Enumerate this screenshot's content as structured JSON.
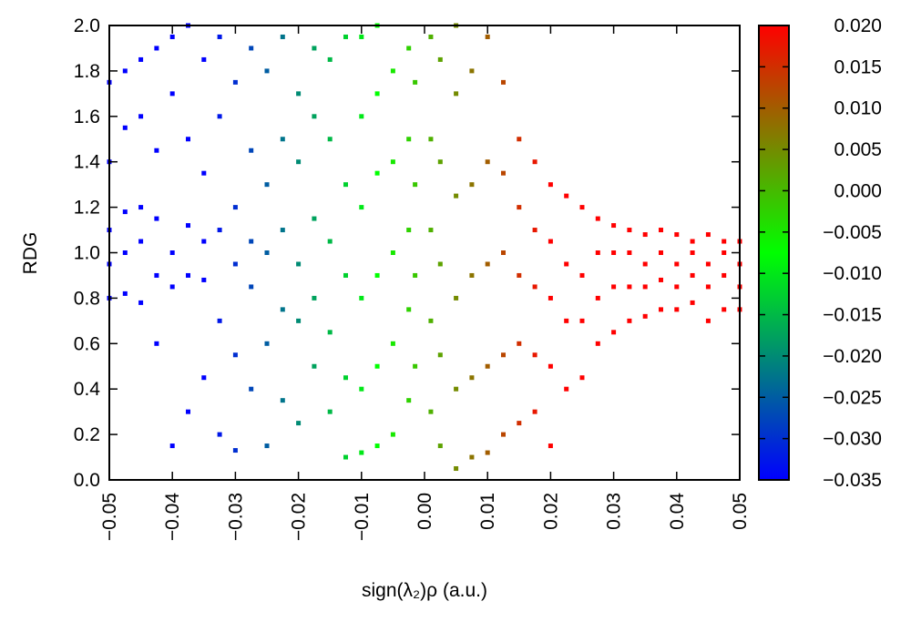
{
  "chart_data": {
    "type": "scatter",
    "x_label": "sign(λ₂)ρ (a.u.)",
    "y_label": "RDG",
    "xlim": [
      -0.05,
      0.05
    ],
    "ylim": [
      0,
      2
    ],
    "xticks": [
      {
        "value": -0.05,
        "label": "−0.05"
      },
      {
        "value": -0.04,
        "label": "−0.04"
      },
      {
        "value": -0.03,
        "label": "−0.03"
      },
      {
        "value": -0.02,
        "label": "−0.02"
      },
      {
        "value": -0.01,
        "label": "−0.01"
      },
      {
        "value": 0,
        "label": "0.00"
      },
      {
        "value": 0.01,
        "label": "0.01"
      },
      {
        "value": 0.02,
        "label": "0.02"
      },
      {
        "value": 0.03,
        "label": "0.03"
      },
      {
        "value": 0.04,
        "label": "0.04"
      },
      {
        "value": 0.05,
        "label": "0.05"
      }
    ],
    "yticks": [
      {
        "value": 0,
        "label": "0.0"
      },
      {
        "value": 0.2,
        "label": "0.2"
      },
      {
        "value": 0.4,
        "label": "0.4"
      },
      {
        "value": 0.6,
        "label": "0.6"
      },
      {
        "value": 0.8,
        "label": "0.8"
      },
      {
        "value": 1,
        "label": "1.0"
      },
      {
        "value": 1.2,
        "label": "1.2"
      },
      {
        "value": 1.4,
        "label": "1.4"
      },
      {
        "value": 1.6,
        "label": "1.6"
      },
      {
        "value": 1.8,
        "label": "1.8"
      },
      {
        "value": 2,
        "label": "2.0"
      }
    ],
    "colorbar": {
      "lim": [
        -0.035,
        0.02
      ],
      "colors": [
        "#0000ff",
        "#00ff00",
        "#ff0000"
      ],
      "ticks": [
        {
          "value": 0.02,
          "label": "0.020"
        },
        {
          "value": 0.015,
          "label": "0.015"
        },
        {
          "value": 0.01,
          "label": "0.010"
        },
        {
          "value": 0.005,
          "label": "0.005"
        },
        {
          "value": 0,
          "label": "0.000"
        },
        {
          "value": -0.005,
          "label": "−0.005"
        },
        {
          "value": -0.01,
          "label": "−0.010"
        },
        {
          "value": -0.015,
          "label": "−0.015"
        },
        {
          "value": -0.02,
          "label": "−0.020"
        },
        {
          "value": -0.025,
          "label": "−0.025"
        },
        {
          "value": -0.03,
          "label": "−0.030"
        },
        {
          "value": -0.035,
          "label": "−0.035"
        }
      ]
    },
    "x": [
      -0.05,
      -0.05,
      -0.05,
      -0.05,
      -0.05,
      -0.0475,
      -0.0475,
      -0.0475,
      -0.0475,
      -0.0475,
      -0.045,
      -0.045,
      -0.045,
      -0.045,
      -0.045,
      -0.0425,
      -0.0425,
      -0.0425,
      -0.0425,
      -0.0425,
      -0.04,
      -0.04,
      -0.04,
      -0.04,
      -0.04,
      -0.0375,
      -0.0375,
      -0.0375,
      -0.0375,
      -0.0375,
      -0.035,
      -0.035,
      -0.035,
      -0.035,
      -0.035,
      -0.0325,
      -0.0325,
      -0.0325,
      -0.0325,
      -0.0325,
      -0.03,
      -0.03,
      -0.03,
      -0.03,
      -0.03,
      -0.0275,
      -0.0275,
      -0.0275,
      -0.0275,
      -0.0275,
      -0.025,
      -0.025,
      -0.025,
      -0.025,
      -0.025,
      -0.0225,
      -0.0225,
      -0.0225,
      -0.0225,
      -0.0225,
      -0.02,
      -0.02,
      -0.02,
      -0.02,
      -0.02,
      -0.0175,
      -0.0175,
      -0.0175,
      -0.0175,
      -0.0175,
      -0.015,
      -0.015,
      -0.015,
      -0.015,
      -0.015,
      -0.0125,
      -0.0125,
      -0.0125,
      -0.0125,
      -0.0125,
      -0.01,
      -0.01,
      -0.01,
      -0.01,
      -0.01,
      -0.01,
      -0.0075,
      -0.0075,
      -0.0075,
      -0.0075,
      -0.0075,
      -0.0075,
      -0.005,
      -0.005,
      -0.005,
      -0.005,
      -0.005,
      -0.0025,
      -0.0025,
      -0.0025,
      -0.0025,
      -0.0025,
      -0.0015,
      -0.0015,
      -0.0015,
      -0.0015,
      0.001,
      0.001,
      0.001,
      0.001,
      0.001,
      0.0025,
      0.0025,
      0.0025,
      0.0025,
      0.0025,
      0.005,
      0.005,
      0.005,
      0.005,
      0.005,
      0.005,
      0.0075,
      0.0075,
      0.0075,
      0.0075,
      0.0075,
      0.01,
      0.01,
      0.01,
      0.01,
      0.01,
      0.0125,
      0.0125,
      0.0125,
      0.0125,
      0.0125,
      0.015,
      0.015,
      0.015,
      0.015,
      0.015,
      0.0175,
      0.0175,
      0.0175,
      0.0175,
      0.0175,
      0.02,
      0.02,
      0.02,
      0.02,
      0.02,
      0.0225,
      0.0225,
      0.0225,
      0.0225,
      0.025,
      0.025,
      0.025,
      0.025,
      0.0275,
      0.0275,
      0.0275,
      0.0275,
      0.03,
      0.03,
      0.03,
      0.03,
      0.0325,
      0.0325,
      0.0325,
      0.0325,
      0.035,
      0.035,
      0.035,
      0.035,
      0.0375,
      0.0375,
      0.0375,
      0.0375,
      0.04,
      0.04,
      0.04,
      0.04,
      0.0425,
      0.0425,
      0.0425,
      0.0425,
      0.045,
      0.045,
      0.045,
      0.045,
      0.0475,
      0.0475,
      0.0475,
      0.0475,
      0.05,
      0.05,
      0.05,
      0.05
    ],
    "y": [
      0.8,
      0.95,
      1.1,
      1.4,
      1.75,
      0.82,
      1.0,
      1.18,
      1.55,
      1.8,
      0.78,
      1.05,
      1.2,
      1.6,
      1.85,
      0.6,
      0.9,
      1.15,
      1.45,
      1.9,
      0.15,
      0.85,
      1.0,
      1.7,
      1.95,
      0.3,
      0.9,
      1.12,
      1.5,
      2.0,
      0.45,
      0.88,
      1.05,
      1.35,
      1.85,
      0.2,
      0.7,
      1.1,
      1.6,
      1.95,
      0.13,
      0.55,
      0.95,
      1.2,
      1.75,
      0.4,
      0.85,
      1.05,
      1.45,
      1.9,
      0.15,
      0.6,
      1.0,
      1.3,
      1.8,
      0.35,
      0.75,
      1.1,
      1.5,
      1.95,
      0.25,
      0.7,
      0.95,
      1.4,
      1.7,
      0.5,
      0.8,
      1.15,
      1.6,
      1.9,
      0.3,
      0.65,
      1.05,
      1.5,
      1.85,
      0.1,
      0.45,
      0.9,
      1.3,
      1.95,
      0.12,
      0.4,
      0.8,
      1.2,
      1.6,
      1.95,
      0.15,
      0.5,
      0.9,
      1.35,
      1.7,
      2.0,
      0.2,
      0.6,
      1.0,
      1.4,
      1.8,
      0.35,
      0.75,
      1.1,
      1.5,
      1.9,
      0.5,
      0.9,
      1.3,
      1.75,
      0.3,
      0.7,
      1.1,
      1.5,
      1.95,
      0.15,
      0.55,
      0.95,
      1.4,
      1.85,
      0.05,
      0.4,
      0.8,
      1.25,
      1.7,
      2.0,
      0.1,
      0.45,
      0.9,
      1.3,
      1.8,
      0.12,
      0.5,
      0.95,
      1.4,
      1.95,
      0.2,
      0.55,
      1.0,
      1.35,
      1.75,
      0.25,
      0.6,
      0.9,
      1.2,
      1.5,
      0.3,
      0.55,
      0.85,
      1.1,
      1.4,
      0.15,
      0.5,
      0.8,
      1.05,
      1.3,
      0.4,
      0.7,
      0.95,
      1.25,
      0.45,
      0.7,
      0.9,
      1.2,
      0.6,
      0.8,
      1.0,
      1.15,
      0.65,
      0.85,
      1.0,
      1.12,
      0.7,
      0.85,
      1.0,
      1.1,
      0.72,
      0.85,
      0.95,
      1.08,
      0.75,
      0.88,
      1.0,
      1.1,
      0.75,
      0.85,
      0.95,
      1.08,
      0.78,
      0.9,
      1.0,
      1.05,
      0.7,
      0.85,
      0.95,
      1.08,
      0.75,
      0.9,
      1.0,
      1.05,
      0.75,
      0.85,
      0.95,
      1.05
    ]
  }
}
